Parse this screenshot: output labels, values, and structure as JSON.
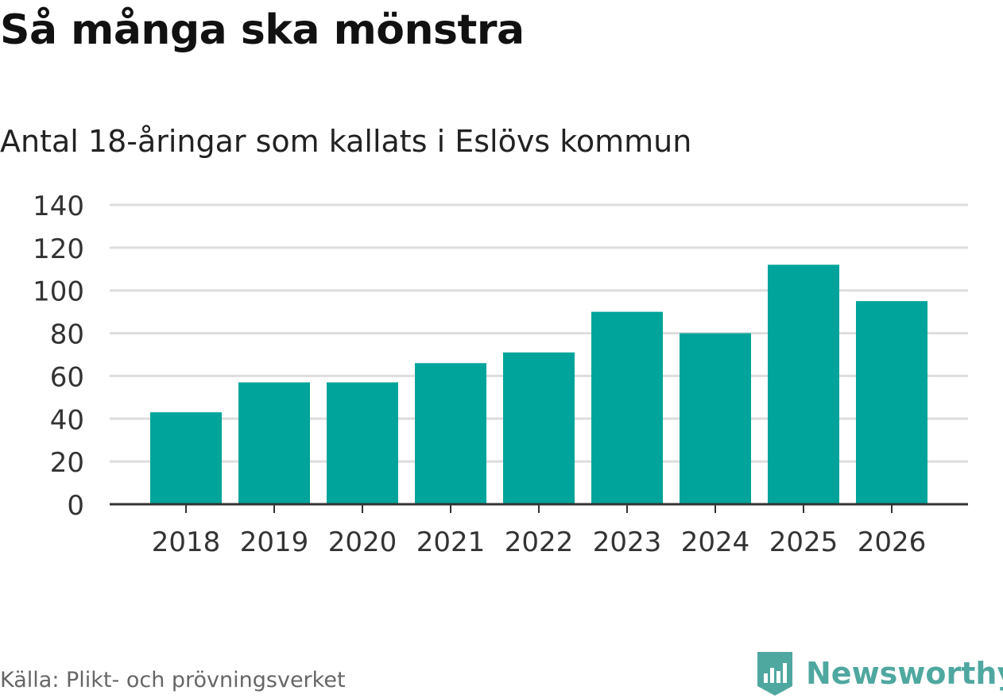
{
  "header": {
    "title": "Så många ska mönstra",
    "subtitle": "Antal 18-åringar som kallats i Eslövs kommun"
  },
  "footer": {
    "source": "Källa: Plikt- och prövningsverket",
    "brand": "Newsworthy"
  },
  "colors": {
    "bar": "#00a49a",
    "grid": "#dddddd",
    "axis": "#333333",
    "brand": "#4fa8a0"
  },
  "chart_data": {
    "type": "bar",
    "title": "Så många ska mönstra",
    "subtitle": "Antal 18-åringar som kallats i Eslövs kommun",
    "xlabel": "",
    "ylabel": "",
    "categories": [
      "2018",
      "2019",
      "2020",
      "2021",
      "2022",
      "2023",
      "2024",
      "2025",
      "2026"
    ],
    "values": [
      43,
      57,
      57,
      66,
      71,
      90,
      80,
      112,
      95
    ],
    "ylim": [
      0,
      140
    ],
    "yticks": [
      0,
      20,
      40,
      60,
      80,
      100,
      120,
      140
    ],
    "grid": true
  }
}
